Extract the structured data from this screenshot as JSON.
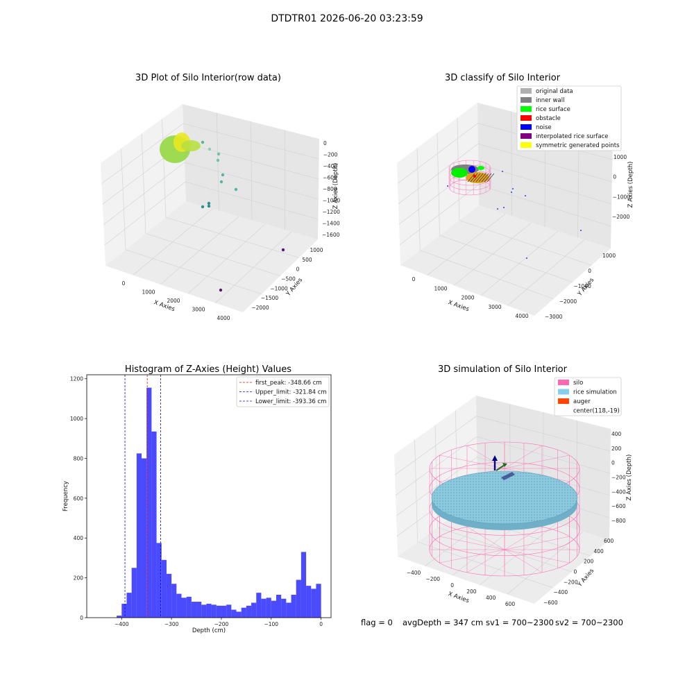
{
  "page": {
    "suptitle": "DTDTR01 2026-06-20 03:23:59",
    "status": {
      "flag": "flag = 0",
      "avg_depth": "avgDepth = 347 cm",
      "sv1": "sv1 = 700~2300",
      "sv2": "sv2 = 700~2300"
    }
  },
  "chart_data": [
    {
      "type": "scatter",
      "title": "3D Plot of Silo Interior(row data)",
      "xlabel": "X Axies",
      "ylabel": "Y Axies",
      "zlabel": "Z Axies (Depth)",
      "x_ticks": [
        "0",
        "1000",
        "2000",
        "3000",
        "4000"
      ],
      "y_ticks": [
        "−2000",
        "−1500",
        "−1000",
        "−500",
        "0",
        "500",
        "1000"
      ],
      "z_ticks": [
        "0",
        "−200",
        "−400",
        "−600",
        "−800",
        "−1000",
        "−1200",
        "−1400",
        "−1600"
      ],
      "colors": {
        "surface": "#9ad84a",
        "surface_top": "#e9e820",
        "mid": "#52b5a0",
        "deep": "#2a8f8f",
        "far": "#5a1a6b"
      }
    },
    {
      "type": "scatter",
      "title": "3D classify of Silo Interior",
      "xlabel": "X Axies",
      "ylabel": "Y Axies",
      "zlabel": "Z Axies (Depth)",
      "x_ticks": [
        "0",
        "1000",
        "2000",
        "3000",
        "4000"
      ],
      "y_ticks": [
        "−3000",
        "−2000",
        "−1000",
        "0",
        "1000"
      ],
      "z_ticks": [
        "1000",
        "0",
        "−1000",
        "−2000"
      ],
      "legend": [
        {
          "label": "original data",
          "color": "#b0b0b0"
        },
        {
          "label": "inner wall",
          "color": "#808080"
        },
        {
          "label": "rice surface",
          "color": "#00ff00"
        },
        {
          "label": "obstacle",
          "color": "#ff0000"
        },
        {
          "label": "noise",
          "color": "#0000ff"
        },
        {
          "label": "interpolated rice surface",
          "color": "#800080"
        },
        {
          "label": "symmetric generated points",
          "color": "#ffff00"
        }
      ],
      "legend_position": "top-right"
    },
    {
      "type": "bar",
      "title": "Histogram of Z-Axies (Height) Values",
      "xlabel": "Depth (cm)",
      "ylabel": "Frequency",
      "xlim": [
        -470,
        20
      ],
      "ylim": [
        0,
        1220
      ],
      "x_ticks": [
        -400,
        -300,
        -200,
        -100,
        0
      ],
      "x_tick_labels": [
        "−400",
        "−300",
        "−200",
        "−100",
        "0"
      ],
      "y_ticks": [
        0,
        200,
        400,
        600,
        800,
        1000,
        1200
      ],
      "bin_width": 10,
      "bars": [
        {
          "x0": -410,
          "v": 10
        },
        {
          "x0": -400,
          "v": 70
        },
        {
          "x0": -390,
          "v": 125
        },
        {
          "x0": -380,
          "v": 250
        },
        {
          "x0": -370,
          "v": 825
        },
        {
          "x0": -360,
          "v": 800
        },
        {
          "x0": -350,
          "v": 1155
        },
        {
          "x0": -340,
          "v": 935
        },
        {
          "x0": -330,
          "v": 375
        },
        {
          "x0": -320,
          "v": 290
        },
        {
          "x0": -310,
          "v": 220
        },
        {
          "x0": -300,
          "v": 170
        },
        {
          "x0": -290,
          "v": 120
        },
        {
          "x0": -280,
          "v": 100
        },
        {
          "x0": -270,
          "v": 105
        },
        {
          "x0": -260,
          "v": 80
        },
        {
          "x0": -250,
          "v": 80
        },
        {
          "x0": -240,
          "v": 65
        },
        {
          "x0": -230,
          "v": 70
        },
        {
          "x0": -220,
          "v": 65
        },
        {
          "x0": -210,
          "v": 60
        },
        {
          "x0": -200,
          "v": 60
        },
        {
          "x0": -190,
          "v": 65
        },
        {
          "x0": -180,
          "v": 40
        },
        {
          "x0": -170,
          "v": 30
        },
        {
          "x0": -160,
          "v": 50
        },
        {
          "x0": -150,
          "v": 60
        },
        {
          "x0": -140,
          "v": 75
        },
        {
          "x0": -130,
          "v": 125
        },
        {
          "x0": -120,
          "v": 95
        },
        {
          "x0": -110,
          "v": 100
        },
        {
          "x0": -100,
          "v": 85
        },
        {
          "x0": -90,
          "v": 115
        },
        {
          "x0": -80,
          "v": 95
        },
        {
          "x0": -70,
          "v": 75
        },
        {
          "x0": -60,
          "v": 115
        },
        {
          "x0": -50,
          "v": 190
        },
        {
          "x0": -40,
          "v": 330
        },
        {
          "x0": -30,
          "v": 160
        },
        {
          "x0": -20,
          "v": 145
        },
        {
          "x0": -10,
          "v": 170
        },
        {
          "x0": 0,
          "v": 0
        },
        {
          "x0": -5,
          "v": 35
        }
      ],
      "bar_color": "#4a4aff",
      "vlines": [
        {
          "label": "first_peak: -348.66 cm",
          "x": -348.66,
          "color": "#e01010"
        },
        {
          "label": "Upper_limit: -321.84 cm",
          "x": -321.84,
          "color": "#1010c0"
        },
        {
          "label": "Lower_limit: -393.36 cm",
          "x": -393.36,
          "color": "#1010c0"
        }
      ],
      "legend_position": "top-right"
    },
    {
      "type": "scatter",
      "title": "3D simulation of Silo Interior",
      "xlabel": "X Axies",
      "ylabel": "Y Axies",
      "zlabel": "Z Axies (Depth)",
      "x_ticks": [
        "−400",
        "−200",
        "0",
        "200",
        "400",
        "600"
      ],
      "y_ticks": [
        "−600",
        "−400",
        "−200",
        "0",
        "200",
        "400",
        "600"
      ],
      "z_ticks": [
        "400",
        "200",
        "0",
        "−200",
        "−400",
        "−600",
        "−800"
      ],
      "legend": [
        {
          "label": "silo",
          "color": "#ff69b4"
        },
        {
          "label": "rice simulation",
          "color": "#87ceeb"
        },
        {
          "label": "auger",
          "color": "#ff4500"
        },
        {
          "label": "center(118,-19)",
          "color": ""
        }
      ],
      "legend_position": "top-right"
    }
  ]
}
